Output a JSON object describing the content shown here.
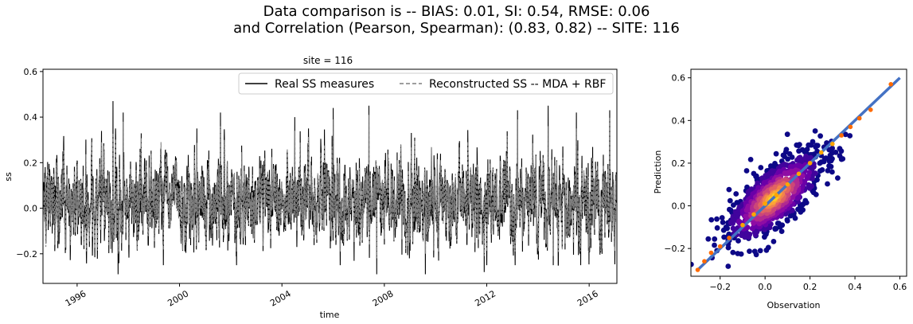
{
  "figure": {
    "title_line1": "Data comparison is -- BIAS: 0.01, SI: 0.54, RMSE: 0.06",
    "title_line2": "and Correlation (Pearson, Spearman): (0.83, 0.82) -- SITE: 116"
  },
  "chart_data": [
    {
      "type": "line",
      "title": "site = 116",
      "xlabel": "time",
      "ylabel": "ss",
      "xlim": [
        "1994-09-01",
        "2017-02-01"
      ],
      "ylim": [
        -0.33,
        0.61
      ],
      "x_ticks": [
        "1996",
        "2000",
        "2004",
        "2008",
        "2012",
        "2016"
      ],
      "y_ticks": [
        -0.2,
        0.0,
        0.2,
        0.4,
        0.6
      ],
      "y_tick_labels": [
        "−0.2",
        "0.0",
        "0.2",
        "0.4",
        "0.6"
      ],
      "legend_position": "top-right",
      "legend_columns": 2,
      "series": [
        {
          "name": "Real SS measures",
          "color": "#000000",
          "line_style": "solid",
          "baseline": 0.03,
          "typical_range": [
            -0.12,
            0.24
          ],
          "min": -0.29,
          "max": 0.47
        },
        {
          "name": "Reconstructed SS -- MDA + RBF",
          "color": "#7f7f7f",
          "line_style": "dashed",
          "baseline": 0.03,
          "typical_range": [
            -0.1,
            0.22
          ],
          "min": -0.22,
          "max": 0.41
        }
      ],
      "peaks": [
        {
          "x": "1997.4",
          "real": 0.47,
          "recon": 0.33
        },
        {
          "x": "1997.8",
          "real": 0.42,
          "recon": 0.38
        },
        {
          "x": "2001.6",
          "real": 0.42,
          "recon": 0.36
        },
        {
          "x": "2004.5",
          "real": 0.4,
          "recon": 0.34
        },
        {
          "x": "2006.0",
          "real": 0.44,
          "recon": 0.39
        },
        {
          "x": "2007.4",
          "real": 0.45,
          "recon": 0.41
        },
        {
          "x": "2013.2",
          "real": 0.43,
          "recon": 0.39
        },
        {
          "x": "2014.4",
          "real": 0.45,
          "recon": 0.36
        },
        {
          "x": "2015.5",
          "real": 0.42,
          "recon": 0.35
        },
        {
          "x": "2016.8",
          "real": 0.43,
          "recon": 0.4
        }
      ],
      "troughs": [
        {
          "x": "1997.6",
          "real": -0.29,
          "recon": -0.2
        },
        {
          "x": "2007.7",
          "real": -0.29,
          "recon": -0.22
        },
        {
          "x": "2009.6",
          "real": -0.29,
          "recon": -0.2
        },
        {
          "x": "2011.9",
          "real": -0.28,
          "recon": -0.21
        },
        {
          "x": "2014.6",
          "real": -0.25,
          "recon": -0.21
        }
      ]
    },
    {
      "type": "scatter",
      "title": "",
      "xlabel": "Observation",
      "ylabel": "Prediction",
      "xlim": [
        -0.33,
        0.63
      ],
      "ylim": [
        -0.33,
        0.64
      ],
      "x_ticks": [
        -0.2,
        0.0,
        0.2,
        0.4,
        0.6
      ],
      "x_tick_labels": [
        "−0.2",
        "0.0",
        "0.2",
        "0.4",
        "0.6"
      ],
      "y_ticks": [
        -0.2,
        0.0,
        0.2,
        0.4,
        0.6
      ],
      "y_tick_labels": [
        "−0.2",
        "0.0",
        "0.2",
        "0.4",
        "0.6"
      ],
      "colormap": "plasma (density)",
      "scatter_cloud": {
        "x_range": [
          -0.3,
          0.56
        ],
        "y_range": [
          -0.29,
          0.56
        ],
        "core_x_range": [
          -0.12,
          0.2
        ],
        "core_y_range": [
          -0.1,
          0.2
        ]
      },
      "qq_line": {
        "color": "#4472c4",
        "points": [
          [
            -0.3,
            -0.3
          ],
          [
            0.6,
            0.6
          ]
        ]
      },
      "quantile_points": {
        "colors": [
          "#ff6a00",
          "#ffa500"
        ],
        "x": [
          -0.3,
          -0.27,
          -0.24,
          -0.2,
          -0.16,
          -0.1,
          -0.05,
          0.0,
          0.05,
          0.1,
          0.15,
          0.2,
          0.25,
          0.3,
          0.34,
          0.38,
          0.42,
          0.47,
          0.56
        ],
        "y": [
          -0.3,
          -0.26,
          -0.22,
          -0.19,
          -0.15,
          -0.09,
          -0.04,
          0.01,
          0.05,
          0.1,
          0.15,
          0.2,
          0.25,
          0.29,
          0.33,
          0.37,
          0.41,
          0.45,
          0.57
        ]
      }
    }
  ]
}
